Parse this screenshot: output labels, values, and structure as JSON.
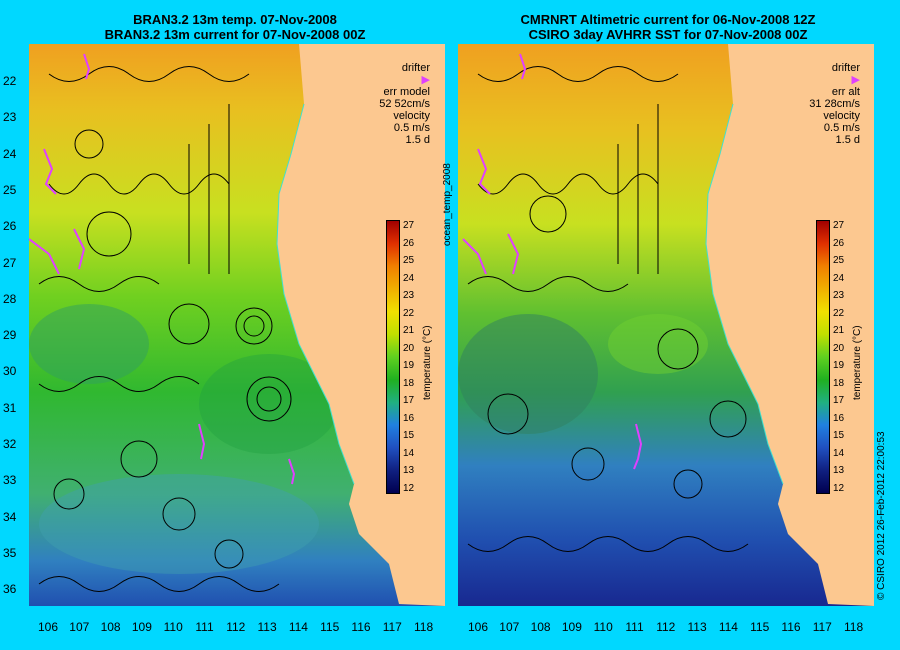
{
  "left": {
    "title1": "BRAN3.2 13m temp. 07-Nov-2008",
    "title2": "BRAN3.2 13m current for 07-Nov-2008 00Z",
    "legend_drifter": "drifter",
    "legend_err": "err model",
    "legend_err_value": "52 52cm/s",
    "legend_velocity": "velocity",
    "legend_speed": "0.5 m/s",
    "legend_days": "1.5 d"
  },
  "right": {
    "title1": "CMRNRT Altimetric current for 06-Nov-2008 12Z",
    "title2": "CSIRO 3day AVHRR SST for 07-Nov-2008 00Z",
    "legend_drifter": "drifter",
    "legend_err": "err alt",
    "legend_err_value": "31 28cm/s",
    "legend_velocity": "velocity",
    "legend_speed": "0.5 m/s",
    "legend_days": "1.5 d"
  },
  "y_ticks": [
    "22",
    "23",
    "24",
    "25",
    "26",
    "27",
    "28",
    "29",
    "30",
    "31",
    "32",
    "33",
    "34",
    "35",
    "36"
  ],
  "x_ticks": [
    "106",
    "107",
    "108",
    "109",
    "110",
    "111",
    "112",
    "113",
    "114",
    "115",
    "116",
    "117",
    "118"
  ],
  "colorbar": {
    "ticks": [
      "27",
      "26",
      "25",
      "24",
      "23",
      "22",
      "21",
      "20",
      "19",
      "18",
      "17",
      "16",
      "15",
      "14",
      "13",
      "12"
    ],
    "label": "temperature (°C)"
  },
  "side_label": "ocean_temp_2008",
  "credit": "© CSIRO 2012   26-Feb-2012 22:00:53",
  "colors": {
    "background": "#00d8ff",
    "land": "#fcc890",
    "drifter": "#e040ff"
  }
}
